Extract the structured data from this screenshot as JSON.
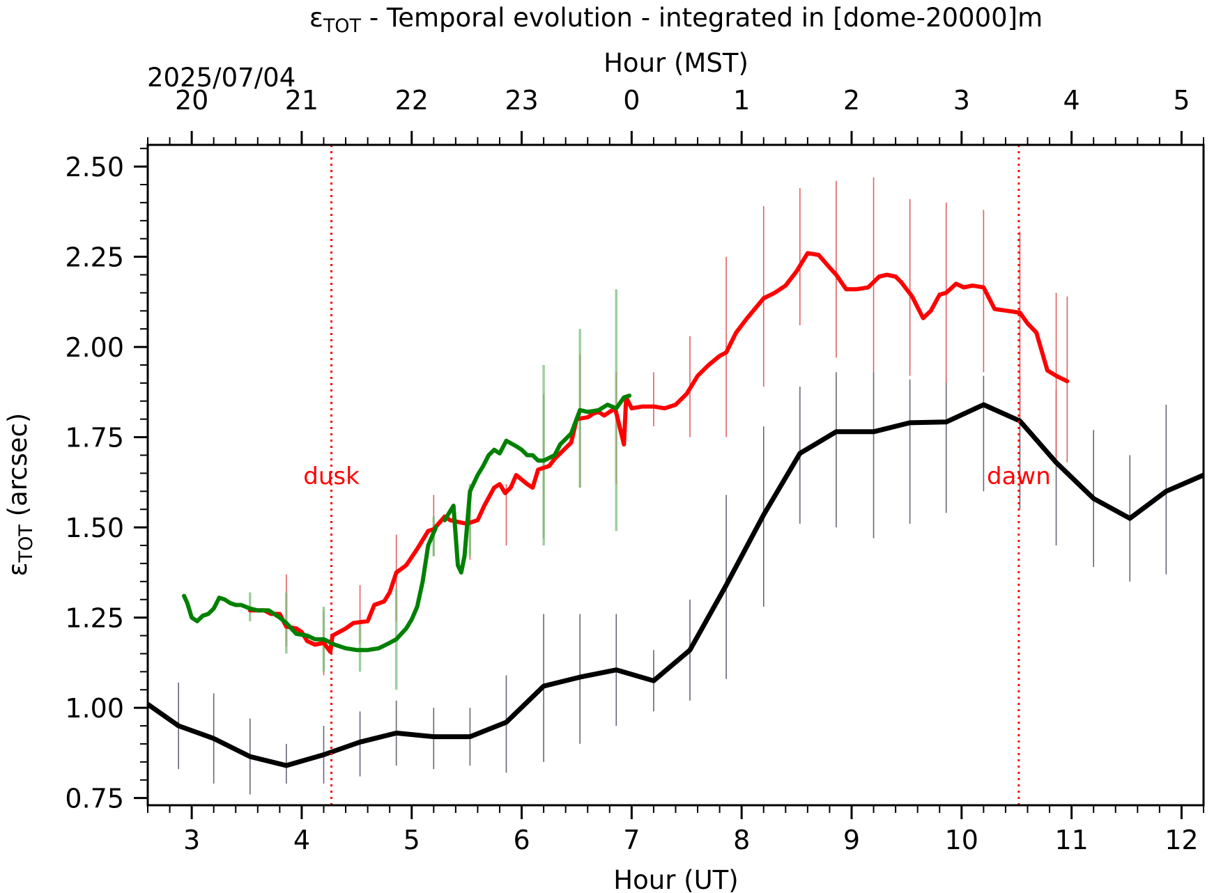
{
  "chart_data": {
    "type": "line",
    "title_main": "ε",
    "title_sub": "TOT",
    "title_rest": " - Temporal evolution - integrated in [dome-20000]m",
    "xlabel_bottom": "Hour (UT)",
    "xlabel_top": "Hour (MST)",
    "date_label": "2025/07/04",
    "ylabel_main": "ε",
    "ylabel_sub": "TOT",
    "ylabel_rest": " (arcsec)",
    "xlim": [
      2.6,
      12.2
    ],
    "ylim": [
      0.73,
      2.56
    ],
    "x_ticks": [
      3,
      4,
      5,
      6,
      7,
      8,
      9,
      10,
      11,
      12
    ],
    "top_ticks": [
      {
        "x": 3,
        "label": "20"
      },
      {
        "x": 4,
        "label": "21"
      },
      {
        "x": 5,
        "label": "22"
      },
      {
        "x": 6,
        "label": "23"
      },
      {
        "x": 7,
        "label": "0"
      },
      {
        "x": 8,
        "label": "1"
      },
      {
        "x": 9,
        "label": "2"
      },
      {
        "x": 10,
        "label": "3"
      },
      {
        "x": 11,
        "label": "4"
      },
      {
        "x": 12,
        "label": "5"
      }
    ],
    "y_ticks": [
      {
        "v": 0.75,
        "label": "0.75"
      },
      {
        "v": 1.0,
        "label": "1.00"
      },
      {
        "v": 1.25,
        "label": "1.25"
      },
      {
        "v": 1.5,
        "label": "1.50"
      },
      {
        "v": 1.75,
        "label": "1.75"
      },
      {
        "v": 2.0,
        "label": "2.00"
      },
      {
        "v": 2.25,
        "label": "2.25"
      },
      {
        "v": 2.5,
        "label": "2.50"
      }
    ],
    "annotations": [
      {
        "x": 4.27,
        "label": "dusk",
        "color": "#ff0000"
      },
      {
        "x": 10.52,
        "label": "dawn",
        "color": "#ff0000"
      }
    ],
    "series": [
      {
        "color": "#000000",
        "errorbar_color": "#666677",
        "points": [
          {
            "x": 2.6,
            "y": 1.01,
            "lo": null,
            "hi": null
          },
          {
            "x": 2.88,
            "y": 0.95,
            "lo": 0.83,
            "hi": 1.07
          },
          {
            "x": 3.2,
            "y": 0.915,
            "lo": 0.79,
            "hi": 1.04
          },
          {
            "x": 3.53,
            "y": 0.865,
            "lo": 0.76,
            "hi": 0.97
          },
          {
            "x": 3.86,
            "y": 0.84,
            "lo": 0.79,
            "hi": 0.9
          },
          {
            "x": 4.2,
            "y": 0.87,
            "lo": 0.79,
            "hi": 0.95
          },
          {
            "x": 4.53,
            "y": 0.905,
            "lo": 0.81,
            "hi": 0.99
          },
          {
            "x": 4.86,
            "y": 0.93,
            "lo": 0.84,
            "hi": 1.02
          },
          {
            "x": 5.2,
            "y": 0.92,
            "lo": 0.83,
            "hi": 1.0
          },
          {
            "x": 5.53,
            "y": 0.92,
            "lo": 0.84,
            "hi": 1.0
          },
          {
            "x": 5.86,
            "y": 0.96,
            "lo": 0.82,
            "hi": 1.09
          },
          {
            "x": 6.2,
            "y": 1.06,
            "lo": 0.85,
            "hi": 1.26
          },
          {
            "x": 6.53,
            "y": 1.085,
            "lo": 0.9,
            "hi": 1.26
          },
          {
            "x": 6.86,
            "y": 1.105,
            "lo": 0.95,
            "hi": 1.26
          },
          {
            "x": 7.2,
            "y": 1.075,
            "lo": 0.99,
            "hi": 1.16
          },
          {
            "x": 7.53,
            "y": 1.16,
            "lo": 1.02,
            "hi": 1.3
          },
          {
            "x": 7.86,
            "y": 1.34,
            "lo": 1.08,
            "hi": 1.59
          },
          {
            "x": 8.2,
            "y": 1.535,
            "lo": 1.28,
            "hi": 1.78
          },
          {
            "x": 8.53,
            "y": 1.705,
            "lo": 1.51,
            "hi": 1.89
          },
          {
            "x": 8.86,
            "y": 1.765,
            "lo": 1.5,
            "hi": 1.93
          },
          {
            "x": 9.2,
            "y": 1.765,
            "lo": 1.47,
            "hi": 1.93
          },
          {
            "x": 9.53,
            "y": 1.79,
            "lo": 1.51,
            "hi": 1.91
          },
          {
            "x": 9.86,
            "y": 1.792,
            "lo": 1.54,
            "hi": 1.92
          },
          {
            "x": 10.2,
            "y": 1.84,
            "lo": 1.6,
            "hi": 1.92
          },
          {
            "x": 10.53,
            "y": 1.795,
            "lo": 1.55,
            "hi": 1.92
          },
          {
            "x": 10.86,
            "y": 1.68,
            "lo": 1.45,
            "hi": 1.88
          },
          {
            "x": 11.2,
            "y": 1.58,
            "lo": 1.39,
            "hi": 1.77
          },
          {
            "x": 11.53,
            "y": 1.525,
            "lo": 1.35,
            "hi": 1.7
          },
          {
            "x": 11.86,
            "y": 1.6,
            "lo": 1.37,
            "hi": 1.84
          },
          {
            "x": 12.2,
            "y": 1.645,
            "lo": 1.39,
            "hi": 1.9
          }
        ]
      },
      {
        "color": "#ff0000",
        "errorbar_color": "#e06060",
        "points": [
          {
            "x": 3.53,
            "y": 1.27
          },
          {
            "x": 3.66,
            "y": 1.27
          },
          {
            "x": 3.72,
            "y": 1.26
          },
          {
            "x": 3.8,
            "y": 1.26
          },
          {
            "x": 3.86,
            "y": 1.225
          },
          {
            "x": 3.95,
            "y": 1.22
          },
          {
            "x": 4.0,
            "y": 1.21
          },
          {
            "x": 4.05,
            "y": 1.185
          },
          {
            "x": 4.12,
            "y": 1.175
          },
          {
            "x": 4.2,
            "y": 1.18
          },
          {
            "x": 4.26,
            "y": 1.155
          },
          {
            "x": 4.28,
            "y": 1.2
          },
          {
            "x": 4.4,
            "y": 1.22
          },
          {
            "x": 4.47,
            "y": 1.235
          },
          {
            "x": 4.6,
            "y": 1.24
          },
          {
            "x": 4.66,
            "y": 1.285
          },
          {
            "x": 4.75,
            "y": 1.295
          },
          {
            "x": 4.8,
            "y": 1.32
          },
          {
            "x": 4.86,
            "y": 1.375
          },
          {
            "x": 4.95,
            "y": 1.395
          },
          {
            "x": 5.05,
            "y": 1.44
          },
          {
            "x": 5.15,
            "y": 1.49
          },
          {
            "x": 5.2,
            "y": 1.495
          },
          {
            "x": 5.3,
            "y": 1.53
          },
          {
            "x": 5.35,
            "y": 1.52
          },
          {
            "x": 5.5,
            "y": 1.51
          },
          {
            "x": 5.6,
            "y": 1.52
          },
          {
            "x": 5.66,
            "y": 1.56
          },
          {
            "x": 5.75,
            "y": 1.61
          },
          {
            "x": 5.8,
            "y": 1.62
          },
          {
            "x": 5.85,
            "y": 1.595
          },
          {
            "x": 5.9,
            "y": 1.61
          },
          {
            "x": 5.95,
            "y": 1.645
          },
          {
            "x": 6.05,
            "y": 1.62
          },
          {
            "x": 6.1,
            "y": 1.61
          },
          {
            "x": 6.15,
            "y": 1.66
          },
          {
            "x": 6.25,
            "y": 1.67
          },
          {
            "x": 6.3,
            "y": 1.69
          },
          {
            "x": 6.4,
            "y": 1.72
          },
          {
            "x": 6.45,
            "y": 1.735
          },
          {
            "x": 6.5,
            "y": 1.8
          },
          {
            "x": 6.6,
            "y": 1.805
          },
          {
            "x": 6.65,
            "y": 1.815
          },
          {
            "x": 6.7,
            "y": 1.82
          },
          {
            "x": 6.75,
            "y": 1.81
          },
          {
            "x": 6.85,
            "y": 1.83
          },
          {
            "x": 6.93,
            "y": 1.73
          },
          {
            "x": 6.95,
            "y": 1.86
          },
          {
            "x": 7.0,
            "y": 1.83
          },
          {
            "x": 7.1,
            "y": 1.835
          },
          {
            "x": 7.2,
            "y": 1.835
          },
          {
            "x": 7.3,
            "y": 1.83
          },
          {
            "x": 7.4,
            "y": 1.84
          },
          {
            "x": 7.5,
            "y": 1.87
          },
          {
            "x": 7.6,
            "y": 1.92
          },
          {
            "x": 7.7,
            "y": 1.95
          },
          {
            "x": 7.8,
            "y": 1.975
          },
          {
            "x": 7.86,
            "y": 1.985
          },
          {
            "x": 7.95,
            "y": 2.04
          },
          {
            "x": 8.05,
            "y": 2.08
          },
          {
            "x": 8.2,
            "y": 2.135
          },
          {
            "x": 8.3,
            "y": 2.15
          },
          {
            "x": 8.4,
            "y": 2.17
          },
          {
            "x": 8.5,
            "y": 2.21
          },
          {
            "x": 8.6,
            "y": 2.26
          },
          {
            "x": 8.7,
            "y": 2.255
          },
          {
            "x": 8.8,
            "y": 2.22
          },
          {
            "x": 8.86,
            "y": 2.2
          },
          {
            "x": 8.95,
            "y": 2.16
          },
          {
            "x": 9.05,
            "y": 2.16
          },
          {
            "x": 9.15,
            "y": 2.165
          },
          {
            "x": 9.25,
            "y": 2.195
          },
          {
            "x": 9.32,
            "y": 2.2
          },
          {
            "x": 9.4,
            "y": 2.195
          },
          {
            "x": 9.45,
            "y": 2.18
          },
          {
            "x": 9.55,
            "y": 2.14
          },
          {
            "x": 9.65,
            "y": 2.08
          },
          {
            "x": 9.72,
            "y": 2.1
          },
          {
            "x": 9.8,
            "y": 2.145
          },
          {
            "x": 9.86,
            "y": 2.15
          },
          {
            "x": 9.95,
            "y": 2.175
          },
          {
            "x": 10.02,
            "y": 2.165
          },
          {
            "x": 10.1,
            "y": 2.17
          },
          {
            "x": 10.2,
            "y": 2.165
          },
          {
            "x": 10.3,
            "y": 2.105
          },
          {
            "x": 10.42,
            "y": 2.1
          },
          {
            "x": 10.53,
            "y": 2.095
          },
          {
            "x": 10.6,
            "y": 2.065
          },
          {
            "x": 10.68,
            "y": 2.04
          },
          {
            "x": 10.78,
            "y": 1.935
          },
          {
            "x": 10.86,
            "y": 1.92
          },
          {
            "x": 10.96,
            "y": 1.905
          }
        ],
        "errorbars": [
          {
            "x": 3.86,
            "lo": 1.17,
            "hi": 1.37
          },
          {
            "x": 4.2,
            "lo": 1.09,
            "hi": 1.27
          },
          {
            "x": 4.53,
            "lo": 1.18,
            "hi": 1.34
          },
          {
            "x": 4.86,
            "lo": 1.24,
            "hi": 1.48
          },
          {
            "x": 5.2,
            "lo": 1.42,
            "hi": 1.59
          },
          {
            "x": 5.53,
            "lo": 1.41,
            "hi": 1.56
          },
          {
            "x": 5.86,
            "lo": 1.45,
            "hi": 1.62
          },
          {
            "x": 6.2,
            "lo": 1.47,
            "hi": 1.87
          },
          {
            "x": 6.53,
            "lo": 1.61,
            "hi": 1.98
          },
          {
            "x": 6.86,
            "lo": 1.62,
            "hi": 1.93
          },
          {
            "x": 7.2,
            "lo": 1.78,
            "hi": 1.93
          },
          {
            "x": 7.53,
            "lo": 1.75,
            "hi": 2.03
          },
          {
            "x": 7.86,
            "lo": 1.75,
            "hi": 2.25
          },
          {
            "x": 8.2,
            "lo": 1.89,
            "hi": 2.39
          },
          {
            "x": 8.53,
            "lo": 2.06,
            "hi": 2.44
          },
          {
            "x": 8.86,
            "lo": 1.97,
            "hi": 2.46
          },
          {
            "x": 9.2,
            "lo": 1.93,
            "hi": 2.47
          },
          {
            "x": 9.53,
            "lo": 1.92,
            "hi": 2.41
          },
          {
            "x": 9.86,
            "lo": 1.9,
            "hi": 2.4
          },
          {
            "x": 10.2,
            "lo": 1.93,
            "hi": 2.38
          },
          {
            "x": 10.53,
            "lo": 1.8,
            "hi": 2.32
          },
          {
            "x": 10.86,
            "lo": 1.68,
            "hi": 2.15
          },
          {
            "x": 10.96,
            "lo": 1.68,
            "hi": 2.14
          }
        ]
      },
      {
        "color": "#008000",
        "errorbar_color": "#7fbf7f",
        "points": [
          {
            "x": 2.93,
            "y": 1.31
          },
          {
            "x": 2.96,
            "y": 1.29
          },
          {
            "x": 3.0,
            "y": 1.25
          },
          {
            "x": 3.05,
            "y": 1.24
          },
          {
            "x": 3.1,
            "y": 1.255
          },
          {
            "x": 3.15,
            "y": 1.26
          },
          {
            "x": 3.2,
            "y": 1.275
          },
          {
            "x": 3.25,
            "y": 1.305
          },
          {
            "x": 3.3,
            "y": 1.3
          },
          {
            "x": 3.35,
            "y": 1.29
          },
          {
            "x": 3.4,
            "y": 1.285
          },
          {
            "x": 3.45,
            "y": 1.285
          },
          {
            "x": 3.53,
            "y": 1.275
          },
          {
            "x": 3.6,
            "y": 1.27
          },
          {
            "x": 3.7,
            "y": 1.27
          },
          {
            "x": 3.8,
            "y": 1.25
          },
          {
            "x": 3.86,
            "y": 1.235
          },
          {
            "x": 3.95,
            "y": 1.205
          },
          {
            "x": 4.05,
            "y": 1.2
          },
          {
            "x": 4.12,
            "y": 1.19
          },
          {
            "x": 4.2,
            "y": 1.19
          },
          {
            "x": 4.3,
            "y": 1.175
          },
          {
            "x": 4.4,
            "y": 1.165
          },
          {
            "x": 4.5,
            "y": 1.16
          },
          {
            "x": 4.6,
            "y": 1.16
          },
          {
            "x": 4.7,
            "y": 1.165
          },
          {
            "x": 4.8,
            "y": 1.18
          },
          {
            "x": 4.86,
            "y": 1.19
          },
          {
            "x": 4.95,
            "y": 1.22
          },
          {
            "x": 5.0,
            "y": 1.245
          },
          {
            "x": 5.05,
            "y": 1.28
          },
          {
            "x": 5.1,
            "y": 1.35
          },
          {
            "x": 5.15,
            "y": 1.45
          },
          {
            "x": 5.22,
            "y": 1.5
          },
          {
            "x": 5.3,
            "y": 1.52
          },
          {
            "x": 5.38,
            "y": 1.56
          },
          {
            "x": 5.42,
            "y": 1.395
          },
          {
            "x": 5.45,
            "y": 1.375
          },
          {
            "x": 5.48,
            "y": 1.42
          },
          {
            "x": 5.53,
            "y": 1.6
          },
          {
            "x": 5.6,
            "y": 1.645
          },
          {
            "x": 5.65,
            "y": 1.67
          },
          {
            "x": 5.7,
            "y": 1.7
          },
          {
            "x": 5.75,
            "y": 1.715
          },
          {
            "x": 5.8,
            "y": 1.705
          },
          {
            "x": 5.86,
            "y": 1.74
          },
          {
            "x": 5.95,
            "y": 1.725
          },
          {
            "x": 6.0,
            "y": 1.715
          },
          {
            "x": 6.05,
            "y": 1.7
          },
          {
            "x": 6.1,
            "y": 1.7
          },
          {
            "x": 6.15,
            "y": 1.685
          },
          {
            "x": 6.2,
            "y": 1.685
          },
          {
            "x": 6.3,
            "y": 1.7
          },
          {
            "x": 6.35,
            "y": 1.73
          },
          {
            "x": 6.45,
            "y": 1.76
          },
          {
            "x": 6.53,
            "y": 1.825
          },
          {
            "x": 6.6,
            "y": 1.82
          },
          {
            "x": 6.7,
            "y": 1.825
          },
          {
            "x": 6.78,
            "y": 1.84
          },
          {
            "x": 6.86,
            "y": 1.83
          },
          {
            "x": 6.93,
            "y": 1.86
          },
          {
            "x": 6.98,
            "y": 1.865
          }
        ],
        "gaps_after_x": [
          5.22
        ],
        "errorbars": [
          {
            "x": 3.53,
            "lo": 1.24,
            "hi": 1.32
          },
          {
            "x": 3.86,
            "lo": 1.15,
            "hi": 1.32
          },
          {
            "x": 4.2,
            "lo": 1.1,
            "hi": 1.28
          },
          {
            "x": 4.53,
            "lo": 1.1,
            "hi": 1.23
          },
          {
            "x": 4.86,
            "lo": 1.05,
            "hi": 1.33
          },
          {
            "x": 5.2,
            "lo": 1.42,
            "hi": 1.53
          },
          {
            "x": 5.53,
            "lo": 1.42,
            "hi": 1.62
          },
          {
            "x": 6.2,
            "lo": 1.45,
            "hi": 1.95
          },
          {
            "x": 6.53,
            "lo": 1.61,
            "hi": 2.05
          },
          {
            "x": 6.86,
            "lo": 1.49,
            "hi": 2.16
          }
        ]
      }
    ]
  }
}
